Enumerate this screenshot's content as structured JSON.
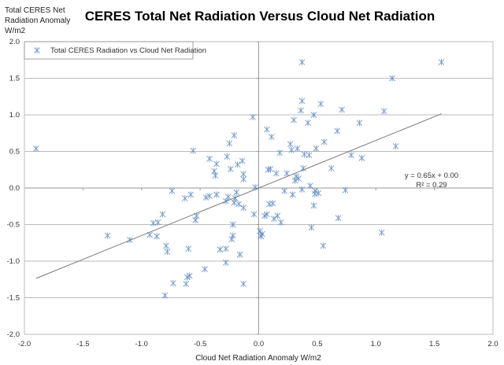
{
  "chart_data": {
    "type": "scatter",
    "title": "CERES Total Net Radiation Versus Cloud Net Radiation",
    "xlabel": "Cloud Net Radiation Anomaly W/m2",
    "ylabel_lines": [
      "Total CERES Net",
      "Radiation Anomaly",
      "W/m2"
    ],
    "xlim": [
      -2.0,
      2.0
    ],
    "ylim": [
      -2.0,
      2.0
    ],
    "xticks": [
      "-2.0",
      "-1.5",
      "-1.0",
      "-0.5",
      "0.0",
      "0.5",
      "1.0",
      "1.5",
      "2.0"
    ],
    "yticks": [
      "2.0",
      "1.5",
      "1.0",
      "0.5",
      "0.0",
      "-0.5",
      "-1.0",
      "-1.5",
      "-2.0"
    ],
    "grid": "horizontal",
    "legend": {
      "placement": "top-left",
      "entry": "Total CERES Radiation vs Cloud Net Radiation"
    },
    "marker_color": "#4f81bd",
    "trendline": {
      "slope": 0.65,
      "intercept": 0.0,
      "x_range": [
        -1.9,
        1.56
      ],
      "equation": "y = 0.65x + 0.00",
      "r2": "R² = 0.29"
    },
    "points": [
      [
        -1.9,
        0.54
      ],
      [
        -1.29,
        -0.65
      ],
      [
        -1.1,
        -0.71
      ],
      [
        -0.93,
        -0.64
      ],
      [
        -0.9,
        -0.48
      ],
      [
        -0.86,
        -0.47
      ],
      [
        -0.87,
        -0.66
      ],
      [
        -0.82,
        -0.36
      ],
      [
        -0.79,
        -0.79
      ],
      [
        -0.78,
        -0.87
      ],
      [
        -0.8,
        -1.47
      ],
      [
        -0.73,
        -1.3
      ],
      [
        -0.74,
        -0.04
      ],
      [
        -0.62,
        -1.31
      ],
      [
        -0.61,
        -1.22
      ],
      [
        -0.59,
        -1.2
      ],
      [
        -0.6,
        -0.83
      ],
      [
        -0.63,
        -0.14
      ],
      [
        -0.58,
        -0.09
      ],
      [
        -0.56,
        0.51
      ],
      [
        -0.53,
        -0.38
      ],
      [
        -0.54,
        -0.44
      ],
      [
        -0.46,
        -1.11
      ],
      [
        -0.45,
        -0.13
      ],
      [
        -0.42,
        -0.11
      ],
      [
        -0.42,
        0.4
      ],
      [
        -0.38,
        0.23
      ],
      [
        -0.37,
        0.17
      ],
      [
        -0.36,
        0.33
      ],
      [
        -0.36,
        -0.09
      ],
      [
        -0.33,
        -0.84
      ],
      [
        -0.28,
        -1.02
      ],
      [
        -0.28,
        -0.18
      ],
      [
        -0.27,
        0.43
      ],
      [
        -0.28,
        -0.83
      ],
      [
        -0.26,
        -0.12
      ],
      [
        -0.25,
        0.61
      ],
      [
        -0.24,
        0.26
      ],
      [
        -0.23,
        -0.7
      ],
      [
        -0.22,
        -0.5
      ],
      [
        -0.22,
        -0.65
      ],
      [
        -0.21,
        0.72
      ],
      [
        -0.21,
        -0.2
      ],
      [
        -0.19,
        -0.06
      ],
      [
        -0.18,
        0.32
      ],
      [
        -0.2,
        -0.14
      ],
      [
        -0.17,
        -0.22
      ],
      [
        -0.16,
        -0.91
      ],
      [
        -0.14,
        0.37
      ],
      [
        -0.13,
        0.19
      ],
      [
        -0.13,
        0.12
      ],
      [
        -0.13,
        -1.31
      ],
      [
        -0.13,
        -0.27
      ],
      [
        -0.05,
        0.97
      ],
      [
        -0.04,
        -0.36
      ],
      [
        -0.03,
        0.01
      ],
      [
        0.01,
        -0.59
      ],
      [
        0.02,
        -0.66
      ],
      [
        0.03,
        -0.63
      ],
      [
        0.05,
        -0.38
      ],
      [
        0.07,
        0.8
      ],
      [
        0.07,
        -0.36
      ],
      [
        0.08,
        0.25
      ],
      [
        0.09,
        -0.22
      ],
      [
        0.1,
        0.26
      ],
      [
        0.11,
        0.7
      ],
      [
        0.12,
        -0.21
      ],
      [
        0.13,
        -0.42
      ],
      [
        0.15,
        0.2
      ],
      [
        0.16,
        -0.38
      ],
      [
        0.18,
        0.48
      ],
      [
        0.19,
        -0.47
      ],
      [
        0.22,
        -0.04
      ],
      [
        0.24,
        0.2
      ],
      [
        0.27,
        0.6
      ],
      [
        0.28,
        0.52
      ],
      [
        0.29,
        -0.09
      ],
      [
        0.3,
        0.93
      ],
      [
        0.31,
        0.1
      ],
      [
        0.32,
        0.16
      ],
      [
        0.33,
        0.54
      ],
      [
        0.34,
        0.13
      ],
      [
        0.36,
        1.06
      ],
      [
        0.37,
        1.19
      ],
      [
        0.37,
        1.72
      ],
      [
        0.37,
        -0.02
      ],
      [
        0.38,
        0.27
      ],
      [
        0.39,
        0.46
      ],
      [
        0.42,
        0.89
      ],
      [
        0.43,
        0.45
      ],
      [
        0.44,
        0.03
      ],
      [
        0.45,
        -0.54
      ],
      [
        0.47,
        -0.24
      ],
      [
        0.47,
        1.0
      ],
      [
        0.48,
        -0.08
      ],
      [
        0.48,
        -0.04
      ],
      [
        0.49,
        0.54
      ],
      [
        0.51,
        -0.07
      ],
      [
        0.53,
        1.15
      ],
      [
        0.55,
        -0.79
      ],
      [
        0.56,
        0.63
      ],
      [
        0.62,
        0.27
      ],
      [
        0.67,
        0.78
      ],
      [
        0.68,
        -0.41
      ],
      [
        0.71,
        1.07
      ],
      [
        0.74,
        -0.03
      ],
      [
        0.79,
        0.45
      ],
      [
        0.86,
        0.89
      ],
      [
        0.88,
        0.41
      ],
      [
        1.05,
        -0.61
      ],
      [
        1.07,
        1.05
      ],
      [
        1.14,
        1.5
      ],
      [
        1.17,
        0.57
      ],
      [
        1.56,
        1.72
      ]
    ]
  }
}
